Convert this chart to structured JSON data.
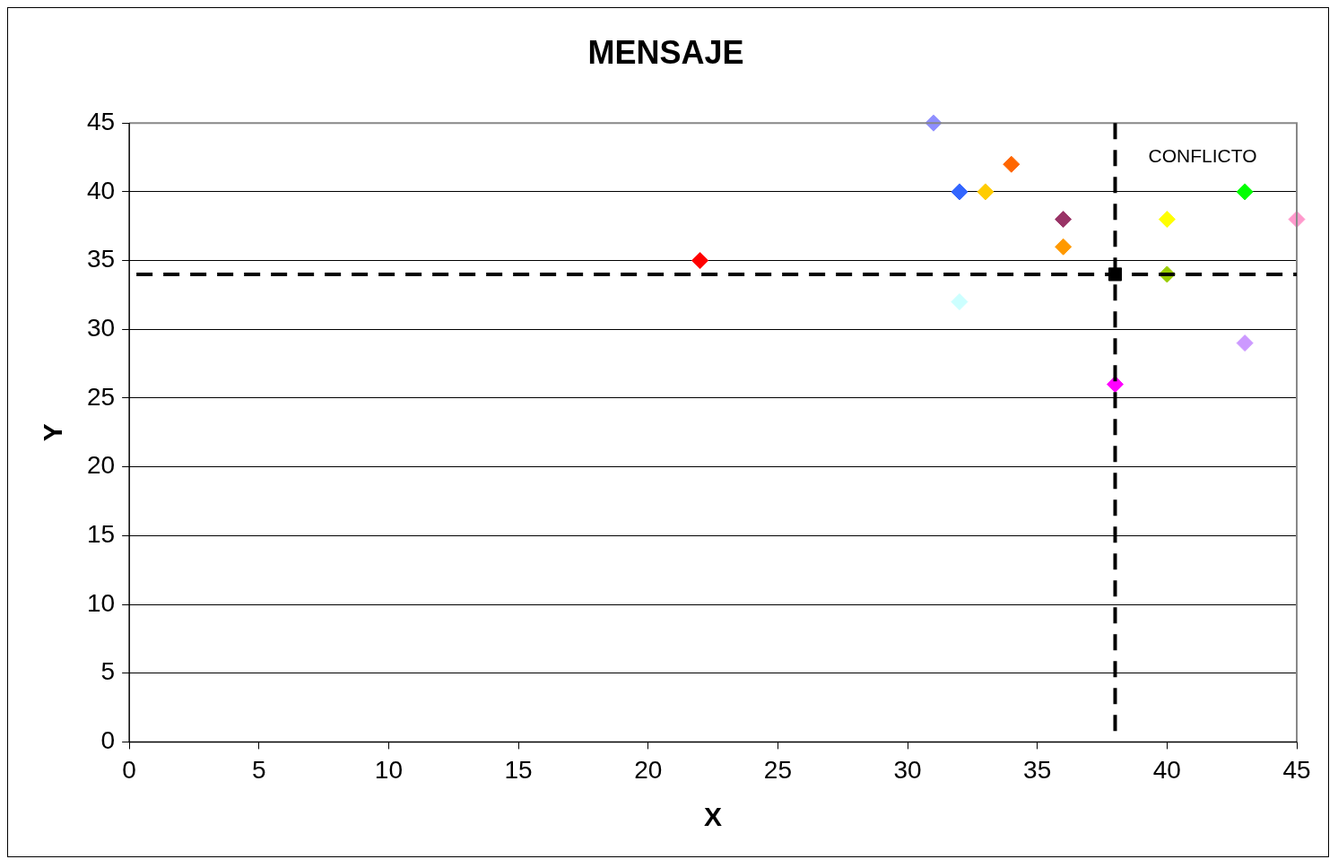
{
  "chart_data": {
    "type": "scatter",
    "title": "MENSAJE",
    "xlabel": "X",
    "ylabel": "Y",
    "series": [
      {
        "marker": "diamond",
        "x": [
          22,
          31,
          32,
          33,
          34,
          36,
          36,
          32,
          38,
          40,
          40,
          43,
          43,
          45
        ],
        "values": [
          35,
          45,
          40,
          40,
          42,
          38,
          36,
          32,
          26,
          38,
          34,
          40,
          29,
          38
        ],
        "colors": [
          "#ff0000",
          "#8f8fff",
          "#3366ff",
          "#ffcc00",
          "#ff6600",
          "#993366",
          "#ff9900",
          "#ccffff",
          "#ff00ff",
          "#ffff00",
          "#99cc00",
          "#00ff00",
          "#cc99ff",
          "#ff99cc"
        ]
      },
      {
        "marker": "square",
        "x": [
          38
        ],
        "values": [
          34
        ],
        "color": "#000000"
      }
    ],
    "xlim": [
      0,
      45
    ],
    "xticks": [
      0,
      5,
      10,
      15,
      20,
      25,
      30,
      35,
      40,
      45
    ],
    "ylim": [
      0,
      45
    ],
    "yticks": [
      0,
      5,
      10,
      15,
      20,
      25,
      30,
      35,
      40,
      45
    ],
    "ref_lines": [
      {
        "axis": "x",
        "value": 38,
        "color": "#000000",
        "line_style": "dashed"
      },
      {
        "axis": "y",
        "value": 34,
        "color": "#000000",
        "line_style": "dashed"
      }
    ],
    "annotations": [
      "CONFLICTO"
    ],
    "grid": "y",
    "legend": false
  }
}
